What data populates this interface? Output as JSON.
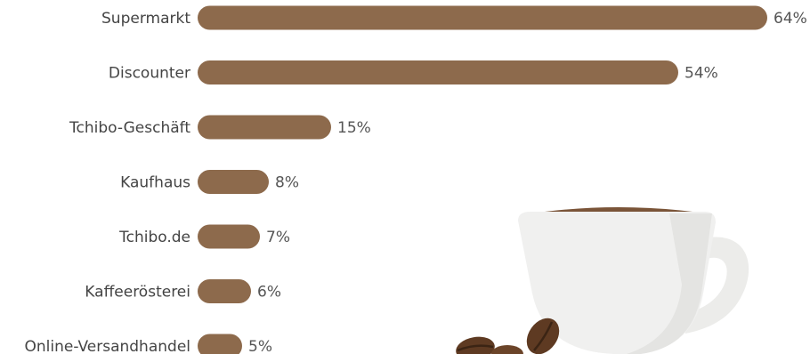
{
  "chart_data": {
    "type": "bar",
    "orientation": "horizontal",
    "categories": [
      "Supermarkt",
      "Discounter",
      "Tchibo-Geschäft",
      "Kaufhaus",
      "Tchibo.de",
      "Kaffeerösterei",
      "Online-Versandhandel"
    ],
    "values": [
      64,
      54,
      15,
      8,
      7,
      6,
      5
    ],
    "value_labels": [
      "64%",
      "54%",
      "15%",
      "8%",
      "7%",
      "6%",
      "5%"
    ],
    "unit": "%",
    "xlim": [
      0,
      64
    ],
    "grid": false,
    "legend": "none"
  },
  "colors": {
    "bar": "#8d6a4c",
    "cup": "#f0f0ef",
    "cup_shadow": "#e2e2e0",
    "coffee": "#7a5438",
    "bean": "#5e3a22"
  },
  "icons": [
    "coffee-cup-icon",
    "coffee-bean-icon"
  ]
}
